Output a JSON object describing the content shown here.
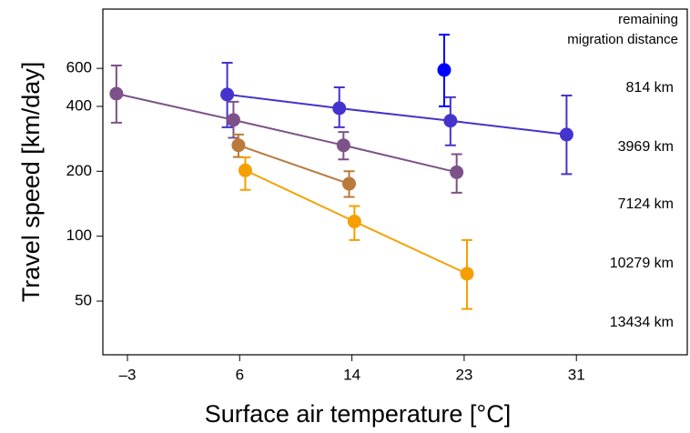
{
  "chart_data": {
    "type": "scatter",
    "log_y": true,
    "x_label": "Surface air temperature [°C]",
    "y_label": "Travel speed [km/day]",
    "legend_title": [
      "remaining",
      "migration distance"
    ],
    "xlim": [
      -5,
      39
    ],
    "xticks": [
      {
        "value": -3,
        "label": "–3"
      },
      6,
      14,
      23,
      31
    ],
    "ylim": [
      28.2,
      1130
    ],
    "yticks": [
      50,
      100,
      200,
      400,
      600
    ],
    "series": [
      {
        "name": "814 km",
        "color": "#0000ff",
        "x": [
          21.4
        ],
        "values": [
          590
        ],
        "err_low": [
          400
        ],
        "err_high": [
          860
        ]
      },
      {
        "name": "3969 km",
        "color": "#4433cc",
        "x": [
          5.0,
          13.1,
          21.9,
          30.3
        ],
        "values": [
          454,
          392,
          343,
          296
        ],
        "err_low": [
          320,
          320,
          264,
          194
        ],
        "err_high": [
          637,
          490,
          441,
          449
        ]
      },
      {
        "name": "7124 km",
        "color": "#7d5189",
        "x": [
          -3.9,
          5.5,
          13.4,
          22.4
        ],
        "values": [
          458,
          346,
          264,
          198
        ],
        "err_low": [
          336,
          286,
          227,
          159
        ],
        "err_high": [
          619,
          420,
          304,
          240
        ]
      },
      {
        "name": "10279 km",
        "color": "#b97a3c",
        "x": [
          5.9,
          13.8
        ],
        "values": [
          264,
          175
        ],
        "err_low": [
          233,
          152
        ],
        "err_high": [
          296,
          200
        ]
      },
      {
        "name": "13434 km",
        "color": "#f5a000",
        "x": [
          6.4,
          14.2,
          23.2
        ],
        "values": [
          202,
          117,
          67
        ],
        "err_low": [
          164,
          96,
          46
        ],
        "err_high": [
          232,
          138,
          96
        ]
      }
    ]
  }
}
